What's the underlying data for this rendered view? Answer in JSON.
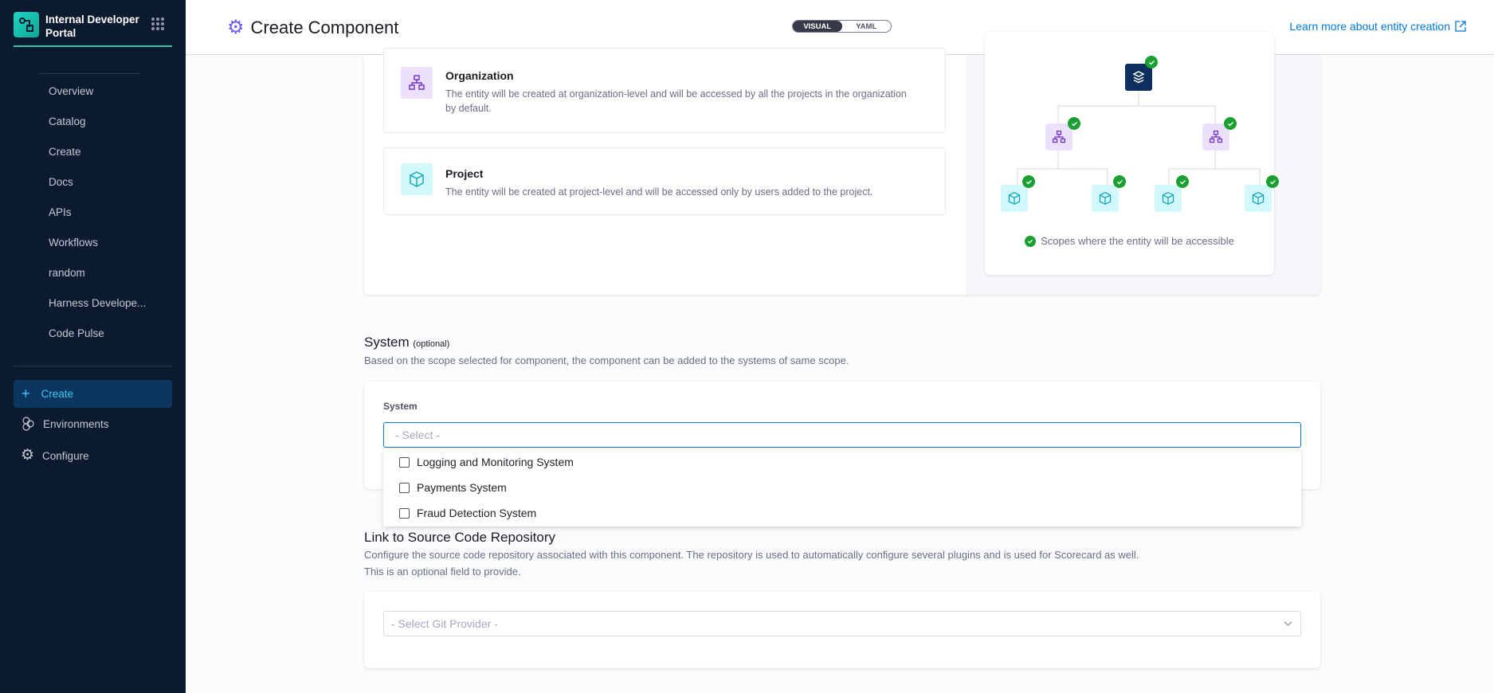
{
  "sidebar": {
    "brand": "Internal Developer Portal",
    "items": [
      "Overview",
      "Catalog",
      "Create",
      "Docs",
      "APIs",
      "Workflows",
      "random",
      "Harness Develope...",
      "Code Pulse"
    ],
    "modules": {
      "create": "Create",
      "environments": "Environments",
      "configure": "Configure"
    }
  },
  "header": {
    "title": "Create Component",
    "toggle": {
      "visual": "VISUAL",
      "yaml": "YAML",
      "selected": "VISUAL"
    },
    "learn_more": "Learn more about entity creation"
  },
  "scope": {
    "options": [
      {
        "title": "Organization",
        "desc": "The entity will be created at organization-level and will be accessed by all the projects in the organization by default."
      },
      {
        "title": "Project",
        "desc": "The entity will be created at project-level and will be accessed only by users added to the project."
      }
    ],
    "legend": "Scopes where the entity will be accessible"
  },
  "system": {
    "heading": "System",
    "optional": "(optional)",
    "desc": "Based on the scope selected for component, the component can be added to the systems of same scope.",
    "label": "System",
    "placeholder": "- Select -",
    "options": [
      "Logging and Monitoring System",
      "Payments System",
      "Fraud Detection System"
    ]
  },
  "repo": {
    "heading": "Link to Source Code Repository",
    "desc1": "Configure the source code repository associated with this component. The repository is used to automatically configure several plugins and is used for Scorecard as well.",
    "desc2": "This is an optional field to provide.",
    "placeholder": "- Select Git Provider -"
  },
  "colors": {
    "sidebar": "#0b1a2f",
    "accent": "#0278d5",
    "active": "#3dc7f6",
    "check": "#1b9e32"
  }
}
